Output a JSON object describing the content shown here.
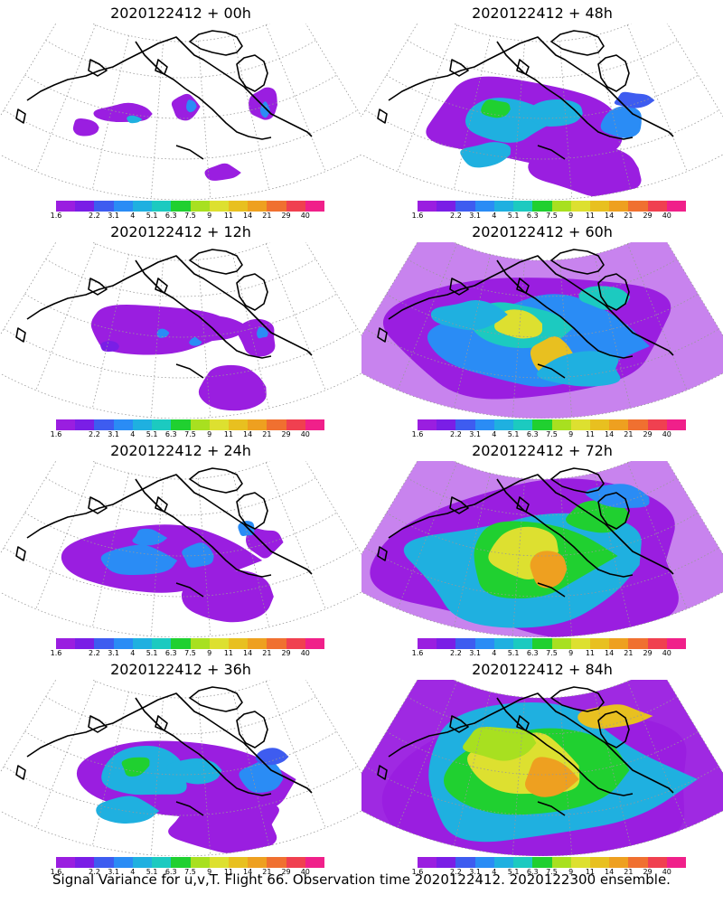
{
  "panels": [
    {
      "title": "2020122412 + 00h",
      "coverage": "sparse"
    },
    {
      "title": "2020122412 + 48h",
      "coverage": "medium-high"
    },
    {
      "title": "2020122412 + 12h",
      "coverage": "low"
    },
    {
      "title": "2020122412 + 60h",
      "coverage": "high"
    },
    {
      "title": "2020122412 + 24h",
      "coverage": "medium"
    },
    {
      "title": "2020122412 + 72h",
      "coverage": "very-high"
    },
    {
      "title": "2020122412 + 36h",
      "coverage": "medium-high"
    },
    {
      "title": "2020122412 + 84h",
      "coverage": "full"
    }
  ],
  "colorbar": {
    "colors": [
      "#9a1ee0",
      "#7a1ee6",
      "#3e5cf0",
      "#2a8cf5",
      "#1fb0e0",
      "#1ccac0",
      "#20d030",
      "#a8e020",
      "#dde030",
      "#e8c020",
      "#eea020",
      "#f07030",
      "#f04050",
      "#f0208a"
    ],
    "labels": [
      "1.6",
      "2.2",
      "3.1",
      "4",
      "5.1",
      "6.3",
      "7.5",
      "9",
      "11",
      "14",
      "21",
      "29",
      "40"
    ]
  },
  "caption": "Signal Variance for u,v,T. Flight 66. Observation time 2020122412. 2020122300 ensemble."
}
